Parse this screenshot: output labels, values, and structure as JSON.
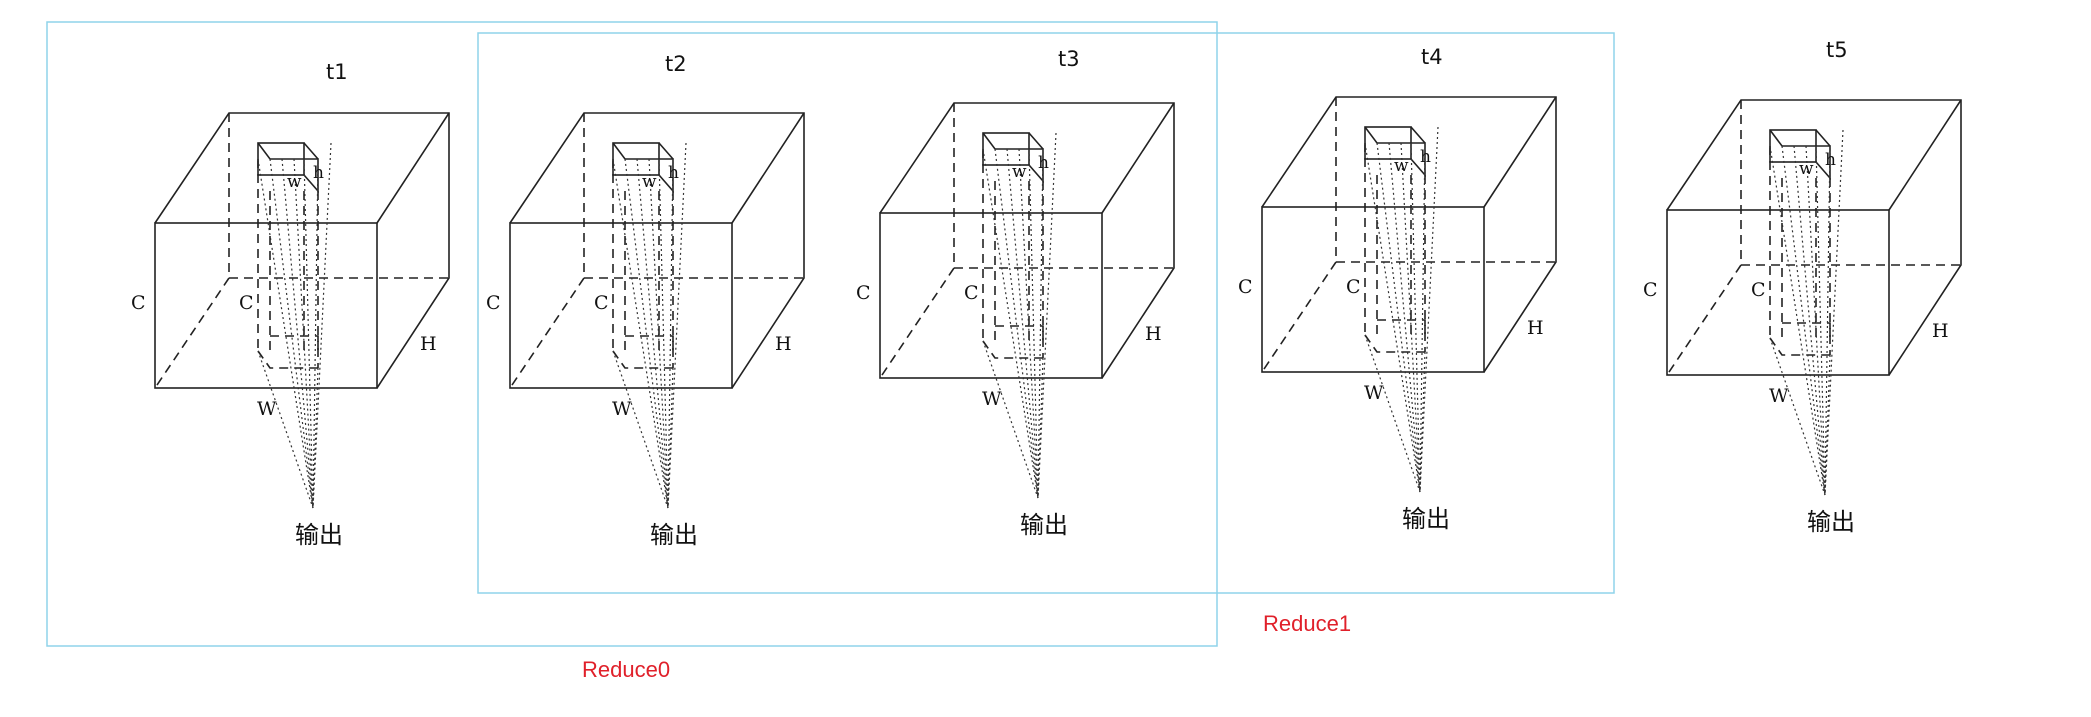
{
  "cubes": [
    {
      "time_label": "t1",
      "dims": {
        "c_outer": "C",
        "c_inner": "C",
        "h_outer": "H",
        "w_outer": "W",
        "w_inner": "w",
        "h_inner": "h"
      },
      "output_label": "输出"
    },
    {
      "time_label": "t2",
      "dims": {
        "c_outer": "C",
        "c_inner": "C",
        "h_outer": "H",
        "w_outer": "W",
        "w_inner": "w",
        "h_inner": "h"
      },
      "output_label": "输出"
    },
    {
      "time_label": "t3",
      "dims": {
        "c_outer": "C",
        "c_inner": "C",
        "h_outer": "H",
        "w_outer": "W",
        "w_inner": "w",
        "h_inner": "h"
      },
      "output_label": "输出"
    },
    {
      "time_label": "t4",
      "dims": {
        "c_outer": "C",
        "c_inner": "C",
        "h_outer": "H",
        "w_outer": "W",
        "w_inner": "w",
        "h_inner": "h"
      },
      "output_label": "输出"
    },
    {
      "time_label": "t5",
      "dims": {
        "c_outer": "C",
        "c_inner": "C",
        "h_outer": "H",
        "w_outer": "W",
        "w_inner": "w",
        "h_inner": "h"
      },
      "output_label": "输出"
    }
  ],
  "groups": [
    {
      "label": "Reduce0",
      "color": "#e0202a",
      "frame_color": "#8fd3ea",
      "cubes": [
        "t1",
        "t2",
        "t3"
      ]
    },
    {
      "label": "Reduce1",
      "color": "#e0202a",
      "frame_color": "#8fd3ea",
      "cubes": [
        "t2",
        "t3",
        "t4"
      ]
    }
  ]
}
